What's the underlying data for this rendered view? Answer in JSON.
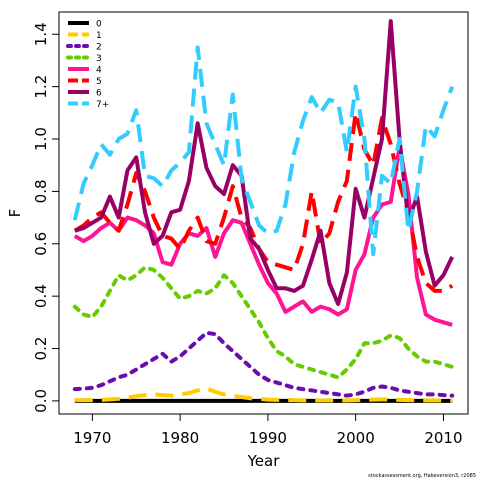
{
  "chart_data": {
    "type": "line",
    "title": "",
    "xlabel": "Year",
    "ylabel": "F",
    "xlim": [
      1966.2,
      2012.8
    ],
    "ylim": [
      -0.05,
      1.485
    ],
    "xticks": [
      1970,
      1980,
      1990,
      2000,
      2010
    ],
    "yticks": [
      0.0,
      0.2,
      0.4,
      0.6,
      0.8,
      1.0,
      1.2,
      1.4
    ],
    "ytick_labels": [
      "0.0",
      "0.2",
      "0.4",
      "0.6",
      "0.8",
      "1.0",
      "1.2",
      "1.4"
    ],
    "legend_position": "top-left",
    "grid": false,
    "footnote": "stockassessment.org, Hakeversion3, r2085",
    "x": [
      1968,
      1969,
      1970,
      1971,
      1972,
      1973,
      1974,
      1975,
      1976,
      1977,
      1978,
      1979,
      1980,
      1981,
      1982,
      1983,
      1984,
      1985,
      1986,
      1987,
      1988,
      1989,
      1990,
      1991,
      1992,
      1993,
      1994,
      1995,
      1996,
      1997,
      1998,
      1999,
      2000,
      2001,
      2002,
      2003,
      2004,
      2005,
      2006,
      2007,
      2008,
      2009,
      2010,
      2011
    ],
    "series": [
      {
        "name": "0",
        "color": "#000000",
        "dash": "solid",
        "values": [
          0.0,
          0.0,
          0.0,
          0.0,
          0.0,
          0.0,
          0.0,
          0.0,
          0.0,
          0.0,
          0.0,
          0.0,
          0.0,
          0.0,
          0.0,
          0.0,
          0.0,
          0.0,
          0.0,
          0.0,
          0.0,
          0.0,
          0.0,
          0.0,
          0.0,
          0.0,
          0.0,
          0.0,
          0.0,
          0.0,
          0.0,
          0.0,
          0.0,
          0.0,
          0.0,
          0.0,
          0.0,
          0.0,
          0.0,
          0.0,
          0.0,
          0.0,
          0.0,
          0.0
        ]
      },
      {
        "name": "1",
        "color": "#ffcc00",
        "dash": "dashed",
        "values": [
          0.003,
          0.003,
          0.003,
          0.004,
          0.006,
          0.008,
          0.012,
          0.018,
          0.022,
          0.025,
          0.022,
          0.02,
          0.025,
          0.03,
          0.04,
          0.048,
          0.035,
          0.025,
          0.02,
          0.015,
          0.01,
          0.008,
          0.005,
          0.004,
          0.003,
          0.003,
          0.002,
          0.002,
          0.002,
          0.002,
          0.002,
          0.002,
          0.003,
          0.004,
          0.005,
          0.006,
          0.005,
          0.004,
          0.003,
          0.003,
          0.002,
          0.002,
          0.002,
          0.001
        ]
      },
      {
        "name": "2",
        "color": "#6a0dad",
        "dash": "dotted",
        "values": [
          0.045,
          0.047,
          0.05,
          0.06,
          0.075,
          0.09,
          0.1,
          0.12,
          0.14,
          0.16,
          0.18,
          0.15,
          0.17,
          0.2,
          0.23,
          0.26,
          0.255,
          0.22,
          0.19,
          0.16,
          0.13,
          0.1,
          0.08,
          0.07,
          0.06,
          0.05,
          0.045,
          0.04,
          0.035,
          0.03,
          0.025,
          0.02,
          0.025,
          0.035,
          0.05,
          0.055,
          0.05,
          0.04,
          0.035,
          0.03,
          0.025,
          0.025,
          0.022,
          0.02
        ]
      },
      {
        "name": "3",
        "color": "#66cc00",
        "dash": "dotted",
        "values": [
          0.36,
          0.33,
          0.32,
          0.36,
          0.42,
          0.48,
          0.46,
          0.48,
          0.51,
          0.5,
          0.47,
          0.43,
          0.39,
          0.4,
          0.42,
          0.41,
          0.43,
          0.48,
          0.45,
          0.4,
          0.35,
          0.3,
          0.24,
          0.19,
          0.17,
          0.14,
          0.13,
          0.12,
          0.11,
          0.1,
          0.09,
          0.12,
          0.16,
          0.22,
          0.22,
          0.23,
          0.25,
          0.24,
          0.2,
          0.17,
          0.15,
          0.15,
          0.14,
          0.13
        ]
      },
      {
        "name": "4",
        "color": "#ff1493",
        "dash": "solid",
        "values": [
          0.63,
          0.61,
          0.63,
          0.66,
          0.68,
          0.65,
          0.7,
          0.69,
          0.67,
          0.64,
          0.53,
          0.52,
          0.6,
          0.64,
          0.63,
          0.66,
          0.55,
          0.64,
          0.69,
          0.68,
          0.6,
          0.52,
          0.45,
          0.41,
          0.34,
          0.36,
          0.38,
          0.34,
          0.36,
          0.35,
          0.33,
          0.35,
          0.5,
          0.56,
          0.7,
          0.75,
          0.76,
          0.97,
          0.79,
          0.47,
          0.33,
          0.31,
          0.3,
          0.29
        ]
      },
      {
        "name": "5",
        "color": "#ff0000",
        "dash": "dashed",
        "values": [
          0.65,
          0.67,
          0.7,
          0.72,
          0.68,
          0.65,
          0.75,
          0.87,
          0.8,
          0.7,
          0.63,
          0.62,
          0.58,
          0.65,
          0.7,
          0.61,
          0.6,
          0.7,
          0.82,
          0.7,
          0.66,
          0.58,
          0.53,
          0.52,
          0.51,
          0.5,
          0.6,
          0.8,
          0.6,
          0.64,
          0.76,
          0.84,
          1.1,
          0.96,
          0.9,
          1.08,
          0.98,
          0.83,
          0.72,
          0.55,
          0.45,
          0.42,
          0.42,
          0.44
        ]
      },
      {
        "name": "6",
        "color": "#990066",
        "dash": "solid",
        "values": [
          0.65,
          0.66,
          0.68,
          0.7,
          0.78,
          0.7,
          0.88,
          0.93,
          0.72,
          0.6,
          0.63,
          0.72,
          0.73,
          0.84,
          1.06,
          0.89,
          0.82,
          0.79,
          0.9,
          0.86,
          0.62,
          0.58,
          0.5,
          0.43,
          0.43,
          0.42,
          0.44,
          0.54,
          0.65,
          0.45,
          0.37,
          0.49,
          0.81,
          0.7,
          0.85,
          1.0,
          1.45,
          1.0,
          0.69,
          0.78,
          0.57,
          0.44,
          0.48,
          0.55
        ]
      },
      {
        "name": "7+",
        "color": "#33ccff",
        "dash": "dashed",
        "values": [
          0.69,
          0.83,
          0.9,
          0.98,
          0.94,
          1.0,
          1.02,
          1.11,
          0.86,
          0.85,
          0.82,
          0.88,
          0.91,
          0.95,
          1.35,
          1.06,
          0.98,
          0.9,
          1.17,
          0.85,
          0.76,
          0.67,
          0.64,
          0.65,
          0.75,
          0.95,
          1.07,
          1.16,
          1.1,
          1.15,
          1.14,
          0.95,
          1.2,
          1.0,
          0.56,
          0.86,
          0.83,
          1.0,
          0.65,
          0.8,
          1.05,
          1.01,
          1.11,
          1.2
        ]
      }
    ]
  }
}
